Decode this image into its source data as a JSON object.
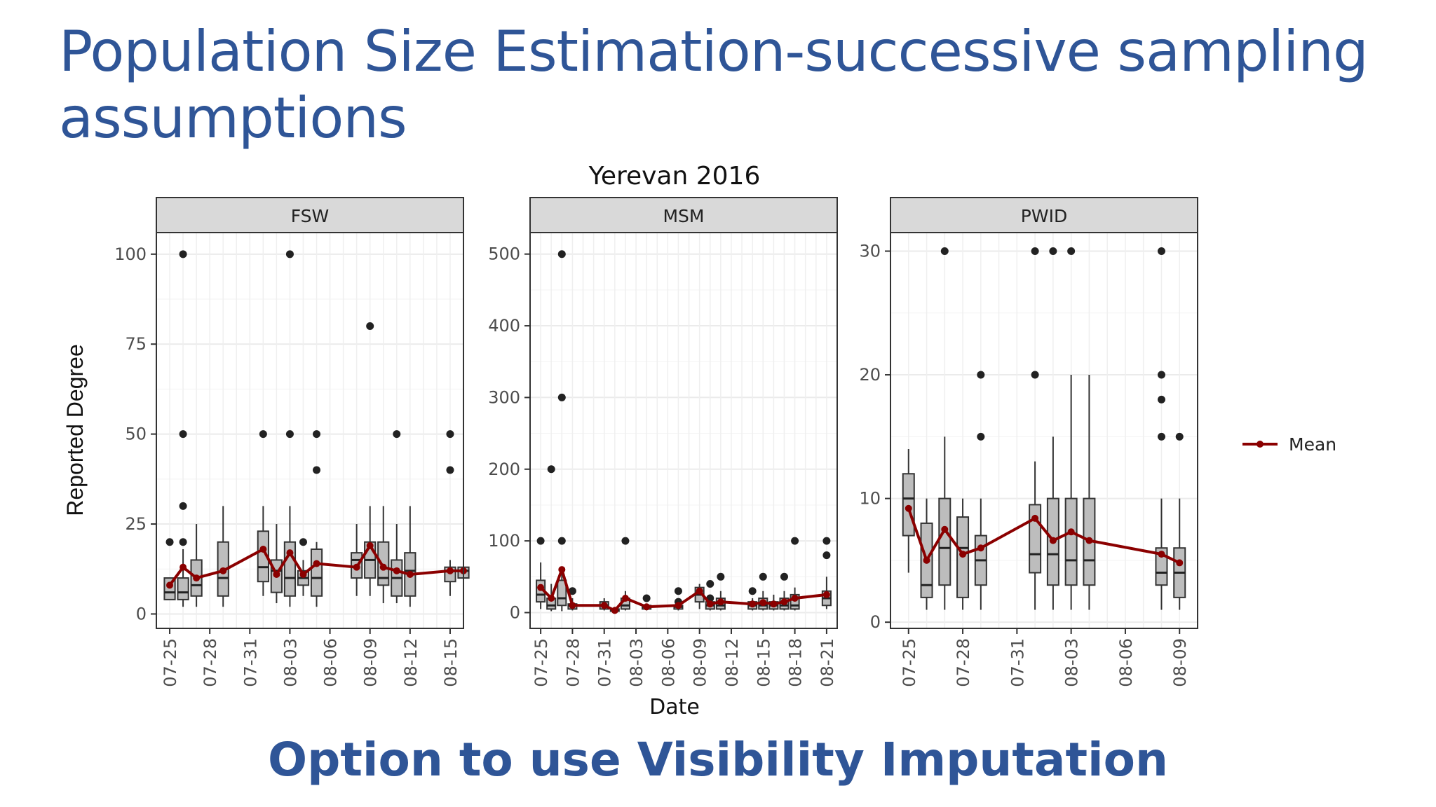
{
  "slide": {
    "title": "Population Size Estimation-successive sampling assumptions",
    "subtitle": "Option to use Visibility Imputation"
  },
  "colors": {
    "title_text": "#2f5597",
    "mean_line": "#8b0000",
    "box_fill": "#bdbdbd",
    "strip_fill": "#d9d9d9",
    "grid": "#ebebeb"
  },
  "chart_data": {
    "type": "box",
    "title": "Yerevan 2016",
    "xlabel": "Date",
    "ylabel": "Reported Degree",
    "grid": true,
    "legend": {
      "position": "right",
      "entries": [
        "Mean"
      ]
    },
    "panels": [
      {
        "name": "FSW",
        "ylim": [
          -4,
          106
        ],
        "yticks": [
          0,
          25,
          50,
          75,
          100
        ],
        "xlim": [
          "07-24",
          "08-16"
        ],
        "xticks": [
          "07-25",
          "07-28",
          "07-31",
          "08-03",
          "08-06",
          "08-09",
          "08-12",
          "08-15"
        ],
        "boxes": [
          {
            "date": "07-25",
            "q1": 4,
            "median": 6,
            "q3": 10,
            "lo": 4,
            "hi": 10,
            "outliers": [
              20
            ]
          },
          {
            "date": "07-26",
            "q1": 4,
            "median": 6,
            "q3": 10,
            "lo": 2,
            "hi": 18,
            "outliers": [
              20,
              30,
              50,
              100
            ]
          },
          {
            "date": "07-27",
            "q1": 5,
            "median": 8,
            "q3": 15,
            "lo": 2,
            "hi": 25,
            "outliers": []
          },
          {
            "date": "07-29",
            "q1": 5,
            "median": 10,
            "q3": 20,
            "lo": 2,
            "hi": 30,
            "outliers": []
          },
          {
            "date": "08-01",
            "q1": 9,
            "median": 13,
            "q3": 23,
            "lo": 5,
            "hi": 30,
            "outliers": [
              50
            ]
          },
          {
            "date": "08-02",
            "q1": 6,
            "median": 12,
            "q3": 15,
            "lo": 3,
            "hi": 25,
            "outliers": []
          },
          {
            "date": "08-03",
            "q1": 5,
            "median": 10,
            "q3": 20,
            "lo": 2,
            "hi": 30,
            "outliers": [
              50,
              100
            ]
          },
          {
            "date": "08-04",
            "q1": 8,
            "median": 10,
            "q3": 12,
            "lo": 5,
            "hi": 15,
            "outliers": [
              20
            ]
          },
          {
            "date": "08-05",
            "q1": 5,
            "median": 10,
            "q3": 18,
            "lo": 2,
            "hi": 20,
            "outliers": [
              40,
              50
            ]
          },
          {
            "date": "08-08",
            "q1": 10,
            "median": 15,
            "q3": 17,
            "lo": 5,
            "hi": 25,
            "outliers": []
          },
          {
            "date": "08-09",
            "q1": 10,
            "median": 15,
            "q3": 20,
            "lo": 5,
            "hi": 30,
            "outliers": [
              80
            ]
          },
          {
            "date": "08-10",
            "q1": 8,
            "median": 10,
            "q3": 20,
            "lo": 3,
            "hi": 30,
            "outliers": []
          },
          {
            "date": "08-11",
            "q1": 5,
            "median": 10,
            "q3": 15,
            "lo": 3,
            "hi": 25,
            "outliers": [
              50
            ]
          },
          {
            "date": "08-12",
            "q1": 5,
            "median": 12,
            "q3": 17,
            "lo": 2,
            "hi": 30,
            "outliers": []
          },
          {
            "date": "08-15",
            "q1": 9,
            "median": 12,
            "q3": 13,
            "lo": 5,
            "hi": 15,
            "outliers": [
              40,
              50
            ]
          },
          {
            "date": "08-16",
            "q1": 10,
            "median": 12,
            "q3": 13,
            "lo": 10,
            "hi": 15,
            "outliers": []
          }
        ],
        "mean": [
          {
            "date": "07-25",
            "value": 8
          },
          {
            "date": "07-26",
            "value": 13
          },
          {
            "date": "07-27",
            "value": 10
          },
          {
            "date": "07-29",
            "value": 12
          },
          {
            "date": "08-01",
            "value": 18
          },
          {
            "date": "08-02",
            "value": 11
          },
          {
            "date": "08-03",
            "value": 17
          },
          {
            "date": "08-04",
            "value": 11
          },
          {
            "date": "08-05",
            "value": 14
          },
          {
            "date": "08-08",
            "value": 13
          },
          {
            "date": "08-09",
            "value": 19
          },
          {
            "date": "08-10",
            "value": 13
          },
          {
            "date": "08-11",
            "value": 12
          },
          {
            "date": "08-12",
            "value": 11
          },
          {
            "date": "08-15",
            "value": 12
          },
          {
            "date": "08-16",
            "value": 12
          }
        ]
      },
      {
        "name": "MSM",
        "ylim": [
          -22,
          530
        ],
        "yticks": [
          0,
          100,
          200,
          300,
          400,
          500
        ],
        "xlim": [
          "07-24",
          "08-22"
        ],
        "xticks": [
          "07-25",
          "07-28",
          "07-31",
          "08-03",
          "08-06",
          "08-09",
          "08-12",
          "08-15",
          "08-18",
          "08-21"
        ],
        "boxes": [
          {
            "date": "07-25",
            "q1": 15,
            "median": 25,
            "q3": 45,
            "lo": 5,
            "hi": 70,
            "outliers": [
              100
            ]
          },
          {
            "date": "07-26",
            "q1": 5,
            "median": 10,
            "q3": 20,
            "lo": 2,
            "hi": 40,
            "outliers": [
              200
            ]
          },
          {
            "date": "07-27",
            "q1": 10,
            "median": 20,
            "q3": 45,
            "lo": 2,
            "hi": 60,
            "outliers": [
              100,
              300,
              500
            ]
          },
          {
            "date": "07-28",
            "q1": 5,
            "median": 10,
            "q3": 12,
            "lo": 3,
            "hi": 20,
            "outliers": [
              30
            ]
          },
          {
            "date": "07-31",
            "q1": 5,
            "median": 10,
            "q3": 15,
            "lo": 3,
            "hi": 20,
            "outliers": []
          },
          {
            "date": "08-01",
            "q1": 2,
            "median": 3,
            "q3": 5,
            "lo": 1,
            "hi": 8,
            "outliers": []
          },
          {
            "date": "08-02",
            "q1": 5,
            "median": 10,
            "q3": 20,
            "lo": 3,
            "hi": 30,
            "outliers": [
              100
            ]
          },
          {
            "date": "08-04",
            "q1": 5,
            "median": 8,
            "q3": 10,
            "lo": 3,
            "hi": 12,
            "outliers": [
              20
            ]
          },
          {
            "date": "08-07",
            "q1": 5,
            "median": 8,
            "q3": 10,
            "lo": 3,
            "hi": 15,
            "outliers": [
              15,
              30
            ]
          },
          {
            "date": "08-09",
            "q1": 15,
            "median": 25,
            "q3": 35,
            "lo": 5,
            "hi": 40,
            "outliers": []
          },
          {
            "date": "08-10",
            "q1": 5,
            "median": 10,
            "q3": 15,
            "lo": 3,
            "hi": 25,
            "outliers": [
              20,
              40
            ]
          },
          {
            "date": "08-11",
            "q1": 5,
            "median": 10,
            "q3": 20,
            "lo": 3,
            "hi": 30,
            "outliers": [
              50
            ]
          },
          {
            "date": "08-14",
            "q1": 5,
            "median": 10,
            "q3": 15,
            "lo": 3,
            "hi": 20,
            "outliers": [
              30
            ]
          },
          {
            "date": "08-15",
            "q1": 5,
            "median": 10,
            "q3": 20,
            "lo": 3,
            "hi": 30,
            "outliers": [
              50
            ]
          },
          {
            "date": "08-16",
            "q1": 5,
            "median": 10,
            "q3": 15,
            "lo": 3,
            "hi": 25,
            "outliers": []
          },
          {
            "date": "08-17",
            "q1": 5,
            "median": 10,
            "q3": 20,
            "lo": 3,
            "hi": 30,
            "outliers": [
              50
            ]
          },
          {
            "date": "08-18",
            "q1": 5,
            "median": 10,
            "q3": 25,
            "lo": 3,
            "hi": 35,
            "outliers": [
              100
            ]
          },
          {
            "date": "08-21",
            "q1": 10,
            "median": 20,
            "q3": 30,
            "lo": 5,
            "hi": 50,
            "outliers": [
              80,
              100
            ]
          }
        ],
        "mean": [
          {
            "date": "07-25",
            "value": 35
          },
          {
            "date": "07-26",
            "value": 20
          },
          {
            "date": "07-27",
            "value": 60
          },
          {
            "date": "07-28",
            "value": 10
          },
          {
            "date": "07-31",
            "value": 10
          },
          {
            "date": "08-01",
            "value": 3
          },
          {
            "date": "08-02",
            "value": 20
          },
          {
            "date": "08-04",
            "value": 8
          },
          {
            "date": "08-07",
            "value": 10
          },
          {
            "date": "08-09",
            "value": 30
          },
          {
            "date": "08-10",
            "value": 12
          },
          {
            "date": "08-11",
            "value": 15
          },
          {
            "date": "08-14",
            "value": 12
          },
          {
            "date": "08-15",
            "value": 14
          },
          {
            "date": "08-16",
            "value": 12
          },
          {
            "date": "08-17",
            "value": 15
          },
          {
            "date": "08-18",
            "value": 20
          },
          {
            "date": "08-21",
            "value": 25
          }
        ]
      },
      {
        "name": "PWID",
        "ylim": [
          -0.5,
          31.5
        ],
        "yticks": [
          0,
          10,
          20,
          30
        ],
        "xlim": [
          "07-24",
          "08-10"
        ],
        "xticks": [
          "07-25",
          "07-28",
          "07-31",
          "08-03",
          "08-06",
          "08-09"
        ],
        "boxes": [
          {
            "date": "07-25",
            "q1": 7,
            "median": 10,
            "q3": 12,
            "lo": 4,
            "hi": 14,
            "outliers": []
          },
          {
            "date": "07-26",
            "q1": 2,
            "median": 3,
            "q3": 8,
            "lo": 1,
            "hi": 10,
            "outliers": []
          },
          {
            "date": "07-27",
            "q1": 3,
            "median": 6,
            "q3": 10,
            "lo": 1,
            "hi": 15,
            "outliers": [
              30
            ]
          },
          {
            "date": "07-28",
            "q1": 2,
            "median": 6,
            "q3": 8.5,
            "lo": 1,
            "hi": 10,
            "outliers": []
          },
          {
            "date": "07-29",
            "q1": 3,
            "median": 5,
            "q3": 7,
            "lo": 1,
            "hi": 10,
            "outliers": [
              15,
              20
            ]
          },
          {
            "date": "08-01",
            "q1": 4,
            "median": 5.5,
            "q3": 9.5,
            "lo": 1,
            "hi": 13,
            "outliers": [
              20,
              30
            ]
          },
          {
            "date": "08-02",
            "q1": 3,
            "median": 5.5,
            "q3": 10,
            "lo": 1,
            "hi": 15,
            "outliers": [
              30
            ]
          },
          {
            "date": "08-03",
            "q1": 3,
            "median": 5,
            "q3": 10,
            "lo": 1,
            "hi": 20,
            "outliers": [
              30
            ]
          },
          {
            "date": "08-04",
            "q1": 3,
            "median": 5,
            "q3": 10,
            "lo": 1,
            "hi": 20,
            "outliers": []
          },
          {
            "date": "08-08",
            "q1": 3,
            "median": 4,
            "q3": 6,
            "lo": 1,
            "hi": 10,
            "outliers": [
              15,
              18,
              20,
              30
            ]
          },
          {
            "date": "08-09",
            "q1": 2,
            "median": 4,
            "q3": 6,
            "lo": 1,
            "hi": 10,
            "outliers": [
              15
            ]
          }
        ],
        "mean": [
          {
            "date": "07-25",
            "value": 9.2
          },
          {
            "date": "07-26",
            "value": 5
          },
          {
            "date": "07-27",
            "value": 7.5
          },
          {
            "date": "07-28",
            "value": 5.5
          },
          {
            "date": "07-29",
            "value": 6
          },
          {
            "date": "08-01",
            "value": 8.4
          },
          {
            "date": "08-02",
            "value": 6.6
          },
          {
            "date": "08-03",
            "value": 7.3
          },
          {
            "date": "08-04",
            "value": 6.6
          },
          {
            "date": "08-08",
            "value": 5.5
          },
          {
            "date": "08-09",
            "value": 4.8
          }
        ]
      }
    ]
  }
}
